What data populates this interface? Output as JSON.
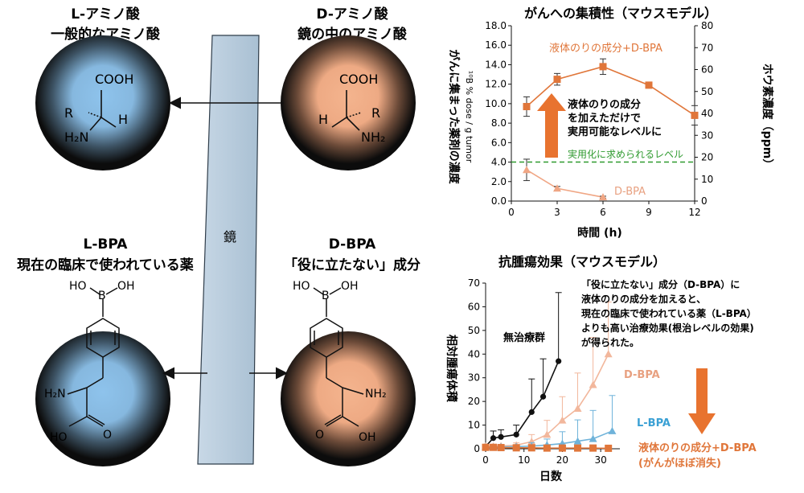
{
  "left_panel": {
    "l_amino": {
      "title": "L-アミノ酸",
      "subtitle": "一般的なアミノ酸"
    },
    "d_amino": {
      "title": "D-アミノ酸",
      "subtitle": "鏡の中のアミノ酸"
    },
    "mirror_label": "鏡",
    "l_bpa": {
      "title": "L-BPA",
      "subtitle": "現在の臨床で使われている薬"
    },
    "d_bpa": {
      "title": "D-BPA",
      "subtitle": "「役に立たない」成分"
    },
    "atoms": {
      "cooh": "COOH",
      "r": "R",
      "h": "H",
      "h2n": "H₂N",
      "nh2": "NH₂",
      "ho": "HO",
      "oh": "OH",
      "b": "B"
    },
    "colors": {
      "l_glow": "#8ec3ec",
      "d_glow": "#f4b48e",
      "mirror": "#c5d5e3"
    }
  },
  "chart_data": [
    {
      "type": "line",
      "title": "がんへの集積性（マウスモデル）",
      "xlabel": "時間 (h)",
      "ylabel_left": "がんに集まった薬剤の濃度",
      "ylabel_left_unit": "¹⁰B % dose / g tumor",
      "ylabel_right": "ホウ素濃度（ppm）",
      "x_ticks": [
        "0",
        "3",
        "6",
        "9",
        "12"
      ],
      "y_ticks_left": [
        "0.0",
        "2.0",
        "4.0",
        "6.0",
        "8.0",
        "10.0",
        "12.0",
        "14.0",
        "16.0",
        "18.0"
      ],
      "y_ticks_right": [
        "0",
        "10",
        "20",
        "30",
        "40",
        "50",
        "60",
        "70",
        "80"
      ],
      "xlim": [
        0,
        12
      ],
      "ylim": [
        0,
        18
      ],
      "ylim_right": [
        0,
        80
      ],
      "series": [
        {
          "name": "液体のりの成分+D-BPA",
          "color": "#e0763a",
          "x": [
            1,
            3,
            6,
            9,
            12
          ],
          "y": [
            9.7,
            12.5,
            13.8,
            11.9,
            8.8
          ],
          "err": [
            1.0,
            0.6,
            0.8,
            0.1,
            1.0
          ]
        },
        {
          "name": "D-BPA",
          "color": "#f0a684",
          "x": [
            1,
            3,
            6
          ],
          "y": [
            3.2,
            1.3,
            0.4
          ],
          "err": [
            1.1,
            0.2,
            0.1
          ]
        }
      ],
      "threshold": {
        "value": 4.0,
        "label": "実用化に求められるレベル",
        "color": "#2f9a2f"
      },
      "annotation": "液体のりの成分\nを加えただけで\n実用可能なレベルに"
    },
    {
      "type": "line",
      "title": "抗腫瘍効果（マウスモデル）",
      "xlabel": "日数",
      "ylabel": "相対腫瘍体積",
      "x_ticks": [
        "0",
        "10",
        "20",
        "30"
      ],
      "y_ticks": [
        "0",
        "10",
        "20",
        "30",
        "40",
        "50",
        "60",
        "70"
      ],
      "xlim": [
        0,
        35
      ],
      "ylim": [
        0,
        70
      ],
      "series": [
        {
          "name": "無治療群",
          "color": "#111111",
          "x": [
            0,
            2,
            4,
            8,
            12,
            15,
            19
          ],
          "y": [
            1,
            4.5,
            5,
            6,
            15.5,
            22,
            37
          ],
          "err": [
            0,
            3,
            3,
            4,
            14,
            16,
            29
          ]
        },
        {
          "name": "D-BPA",
          "color": "#f2b79c",
          "x": [
            0,
            2,
            4,
            8,
            12,
            16,
            20,
            24,
            28,
            32
          ],
          "y": [
            1,
            1,
            1.2,
            1.5,
            3,
            6,
            12,
            17,
            27,
            40
          ],
          "err": [
            0,
            0.5,
            0.5,
            1,
            3,
            6,
            10,
            15,
            20,
            22
          ]
        },
        {
          "name": "L-BPA",
          "color": "#6fb3da",
          "x": [
            0,
            2,
            4,
            8,
            12,
            16,
            20,
            24,
            28,
            33
          ],
          "y": [
            0.6,
            0.6,
            0.8,
            0.9,
            1.1,
            1.6,
            2.2,
            3.2,
            4.2,
            7.5
          ],
          "err": [
            0,
            0.3,
            0.4,
            0.6,
            1.5,
            2.5,
            5,
            9,
            12,
            15
          ]
        },
        {
          "name": "液体のりの成分+D-BPA",
          "color": "#e0763a",
          "x": [
            0,
            2,
            4,
            8,
            12,
            16,
            20,
            24,
            28,
            32
          ],
          "y": [
            0.6,
            0.6,
            0.5,
            0.4,
            0.4,
            0.3,
            0.3,
            0.3,
            0.3,
            0.2
          ],
          "err": [
            0,
            0,
            0,
            0,
            0,
            0,
            0,
            0,
            0,
            0
          ]
        }
      ],
      "label_nlp_sub": "(がんがほぼ消失)",
      "annotation": "「役に立たない」成分（D-BPA）に\n液体のりの成分を加えると、\n現在の臨床で使われている薬（L-BPA）\nよりも高い治療効果(根治レベルの効果)\nが得られた。"
    }
  ]
}
